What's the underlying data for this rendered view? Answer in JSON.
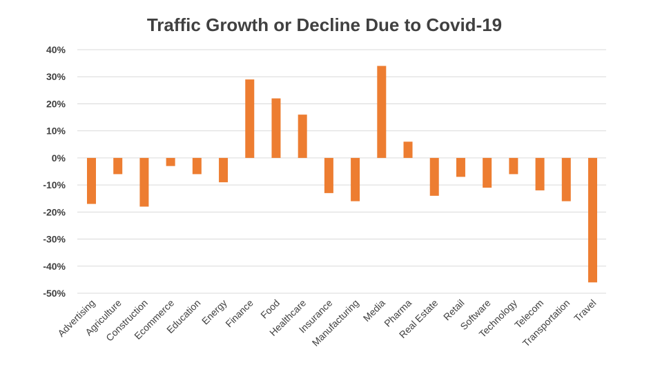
{
  "chart_data": {
    "type": "bar",
    "title": "Traffic Growth or Decline Due to Covid-19",
    "xlabel": "",
    "ylabel": "",
    "ylim": [
      -50,
      40
    ],
    "y_ticks": [
      40,
      30,
      20,
      10,
      0,
      -10,
      -20,
      -30,
      -40,
      -50
    ],
    "y_tick_labels": [
      "40%",
      "30%",
      "20%",
      "10%",
      "0%",
      "-10%",
      "-20%",
      "-30%",
      "-40%",
      "-50%"
    ],
    "grid": true,
    "categories": [
      "Advertising",
      "Agriculture",
      "Construction",
      "Ecommerce",
      "Education",
      "Energy",
      "Finance",
      "Food",
      "Healthcare",
      "Insurance",
      "Manufacturing",
      "Media",
      "Pharma",
      "Real Estate",
      "Retail",
      "Software",
      "Technology",
      "Telecom",
      "Transportation",
      "Travel"
    ],
    "values": [
      -17,
      -6,
      -18,
      -3,
      -6,
      -9,
      29,
      22,
      16,
      -13,
      -16,
      34,
      6,
      -14,
      -7,
      -11,
      -6,
      -12,
      -16,
      -46
    ],
    "bar_color": "#ED7D31"
  }
}
